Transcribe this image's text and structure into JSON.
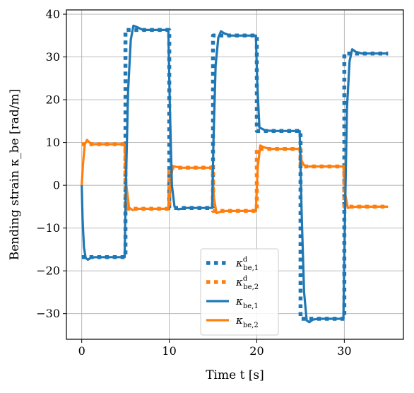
{
  "chart_data": {
    "type": "line",
    "xlabel": "Time t [s]",
    "ylabel": "Bending strain κ_be [rad/m]",
    "xlim": [
      -1.75,
      36.75
    ],
    "ylim": [
      -36,
      41
    ],
    "xticks": [
      0,
      10,
      20,
      30
    ],
    "yticks": [
      -30,
      -20,
      -10,
      0,
      10,
      20,
      30,
      40
    ],
    "grid": true,
    "legend_position": "bottom-center",
    "colors": {
      "series1": "#1f77b4",
      "series2": "#ff7f0e"
    },
    "series": [
      {
        "name": "κ^d_be,1",
        "style": "dotted",
        "color": "#1f77b4",
        "x": [
          0,
          5,
          5,
          10,
          10,
          15,
          15,
          20,
          20,
          25,
          25,
          30,
          30,
          35
        ],
        "y": [
          -16.8,
          -16.8,
          36.3,
          36.3,
          -5.3,
          -5.3,
          35.0,
          35.0,
          12.7,
          12.7,
          -31.2,
          -31.2,
          30.8,
          30.8
        ]
      },
      {
        "name": "κ^d_be,2",
        "style": "dotted",
        "color": "#ff7f0e",
        "x": [
          0,
          5,
          5,
          10,
          10,
          15,
          15,
          20,
          20,
          25,
          25,
          30,
          30,
          35
        ],
        "y": [
          9.6,
          9.6,
          -5.5,
          -5.5,
          4.1,
          4.1,
          -6.0,
          -6.0,
          8.5,
          8.5,
          4.4,
          4.4,
          -5.0,
          -5.0
        ]
      },
      {
        "name": "κ_be,1",
        "style": "solid",
        "color": "#1f77b4",
        "x": [
          0,
          0.1,
          0.25,
          0.45,
          0.7,
          1.0,
          1.5,
          2.5,
          4.9,
          5.05,
          5.3,
          5.6,
          5.9,
          6.3,
          7.0,
          9.9,
          10.05,
          10.3,
          10.6,
          11.0,
          12.0,
          14.9,
          15.05,
          15.3,
          15.6,
          15.9,
          16.3,
          17.0,
          19.9,
          20.05,
          20.3,
          20.6,
          21.0,
          22.0,
          24.9,
          25.1,
          25.4,
          25.7,
          26.0,
          26.4,
          27.0,
          29.9,
          30.05,
          30.3,
          30.6,
          30.9,
          31.3,
          32.0,
          35.0
        ],
        "y": [
          0,
          -8.0,
          -14.5,
          -17.0,
          -17.4,
          -17.0,
          -16.8,
          -16.8,
          -16.8,
          0.0,
          22.0,
          34.0,
          37.3,
          37.0,
          36.3,
          36.3,
          20.0,
          0.0,
          -5.0,
          -5.6,
          -5.3,
          -5.3,
          10.0,
          28.0,
          34.5,
          36.0,
          35.5,
          35.0,
          35.0,
          24.0,
          13.5,
          13.2,
          12.8,
          12.7,
          12.7,
          -5.0,
          -25.0,
          -31.6,
          -32.0,
          -31.4,
          -31.2,
          -31.2,
          -10.0,
          18.0,
          29.0,
          31.8,
          31.2,
          30.8,
          30.8
        ]
      },
      {
        "name": "κ_be,2",
        "style": "solid",
        "color": "#ff7f0e",
        "x": [
          0,
          0.15,
          0.35,
          0.6,
          0.9,
          1.3,
          2.0,
          4.9,
          5.1,
          5.4,
          5.8,
          6.5,
          9.9,
          10.1,
          10.4,
          10.8,
          11.5,
          14.9,
          15.1,
          15.4,
          15.8,
          16.5,
          19.9,
          20.1,
          20.4,
          20.8,
          21.5,
          24.9,
          25.1,
          25.4,
          25.8,
          26.5,
          29.9,
          30.1,
          30.4,
          30.8,
          31.5,
          35.0
        ],
        "y": [
          0,
          5.0,
          9.5,
          10.6,
          10.0,
          9.6,
          9.6,
          9.6,
          0.0,
          -5.2,
          -5.8,
          -5.5,
          -5.5,
          0.0,
          4.5,
          4.3,
          4.1,
          4.1,
          -3.0,
          -6.5,
          -6.2,
          -6.0,
          -6.0,
          4.0,
          9.3,
          8.9,
          8.5,
          8.5,
          5.8,
          4.7,
          4.4,
          4.4,
          4.4,
          -2.0,
          -5.3,
          -5.1,
          -5.0,
          -5.0
        ]
      }
    ]
  }
}
